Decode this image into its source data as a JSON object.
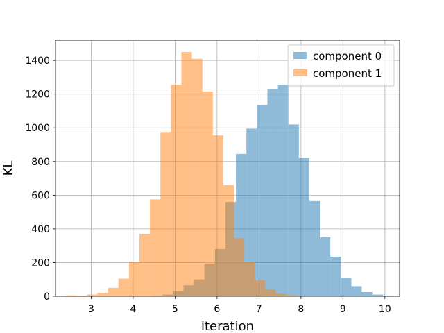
{
  "chart_data": {
    "type": "histogram",
    "xlabel": "iteration",
    "ylabel": "KL",
    "xlim": [
      2.15,
      10.35
    ],
    "ylim": [
      0,
      1520
    ],
    "xticks": [
      3,
      4,
      5,
      6,
      7,
      8,
      9,
      10
    ],
    "yticks": [
      0,
      200,
      400,
      600,
      800,
      1000,
      1200,
      1400
    ],
    "grid": true,
    "legend_position": "top-right",
    "series": [
      {
        "name": "component 0",
        "color": "#1f77b4",
        "opacity": 0.5,
        "bins": [
          {
            "x0": 4.2,
            "x1": 4.45,
            "count": 0
          },
          {
            "x0": 4.45,
            "x1": 4.7,
            "count": 3
          },
          {
            "x0": 4.7,
            "x1": 4.95,
            "count": 10
          },
          {
            "x0": 4.95,
            "x1": 5.2,
            "count": 30
          },
          {
            "x0": 5.2,
            "x1": 5.45,
            "count": 65
          },
          {
            "x0": 5.45,
            "x1": 5.7,
            "count": 100
          },
          {
            "x0": 5.7,
            "x1": 5.95,
            "count": 190
          },
          {
            "x0": 5.95,
            "x1": 6.2,
            "count": 280
          },
          {
            "x0": 6.2,
            "x1": 6.45,
            "count": 560
          },
          {
            "x0": 6.45,
            "x1": 6.7,
            "count": 845
          },
          {
            "x0": 6.7,
            "x1": 6.95,
            "count": 995
          },
          {
            "x0": 6.95,
            "x1": 7.2,
            "count": 1135
          },
          {
            "x0": 7.2,
            "x1": 7.45,
            "count": 1230
          },
          {
            "x0": 7.45,
            "x1": 7.7,
            "count": 1255
          },
          {
            "x0": 7.7,
            "x1": 7.95,
            "count": 1020
          },
          {
            "x0": 7.95,
            "x1": 8.2,
            "count": 820
          },
          {
            "x0": 8.2,
            "x1": 8.45,
            "count": 565
          },
          {
            "x0": 8.45,
            "x1": 8.7,
            "count": 350
          },
          {
            "x0": 8.7,
            "x1": 8.95,
            "count": 235
          },
          {
            "x0": 8.95,
            "x1": 9.2,
            "count": 110
          },
          {
            "x0": 9.2,
            "x1": 9.45,
            "count": 60
          },
          {
            "x0": 9.45,
            "x1": 9.7,
            "count": 25
          },
          {
            "x0": 9.7,
            "x1": 9.95,
            "count": 10
          },
          {
            "x0": 9.95,
            "x1": 10.2,
            "count": 3
          }
        ]
      },
      {
        "name": "component 1",
        "color": "#ff7f0e",
        "opacity": 0.5,
        "bins": [
          {
            "x0": 2.4,
            "x1": 2.65,
            "count": 5
          },
          {
            "x0": 2.65,
            "x1": 2.9,
            "count": 3
          },
          {
            "x0": 2.9,
            "x1": 3.15,
            "count": 10
          },
          {
            "x0": 3.15,
            "x1": 3.4,
            "count": 20
          },
          {
            "x0": 3.4,
            "x1": 3.65,
            "count": 50
          },
          {
            "x0": 3.65,
            "x1": 3.9,
            "count": 105
          },
          {
            "x0": 3.9,
            "x1": 4.15,
            "count": 205
          },
          {
            "x0": 4.15,
            "x1": 4.4,
            "count": 370
          },
          {
            "x0": 4.4,
            "x1": 4.65,
            "count": 575
          },
          {
            "x0": 4.65,
            "x1": 4.9,
            "count": 975
          },
          {
            "x0": 4.9,
            "x1": 5.15,
            "count": 1255
          },
          {
            "x0": 5.15,
            "x1": 5.4,
            "count": 1450
          },
          {
            "x0": 5.4,
            "x1": 5.65,
            "count": 1410
          },
          {
            "x0": 5.65,
            "x1": 5.9,
            "count": 1215
          },
          {
            "x0": 5.9,
            "x1": 6.15,
            "count": 955
          },
          {
            "x0": 6.15,
            "x1": 6.4,
            "count": 660
          },
          {
            "x0": 6.4,
            "x1": 6.65,
            "count": 345
          },
          {
            "x0": 6.65,
            "x1": 6.9,
            "count": 205
          },
          {
            "x0": 6.9,
            "x1": 7.15,
            "count": 95
          },
          {
            "x0": 7.15,
            "x1": 7.4,
            "count": 40
          },
          {
            "x0": 7.4,
            "x1": 7.65,
            "count": 15
          },
          {
            "x0": 7.65,
            "x1": 7.9,
            "count": 5
          }
        ]
      }
    ]
  }
}
